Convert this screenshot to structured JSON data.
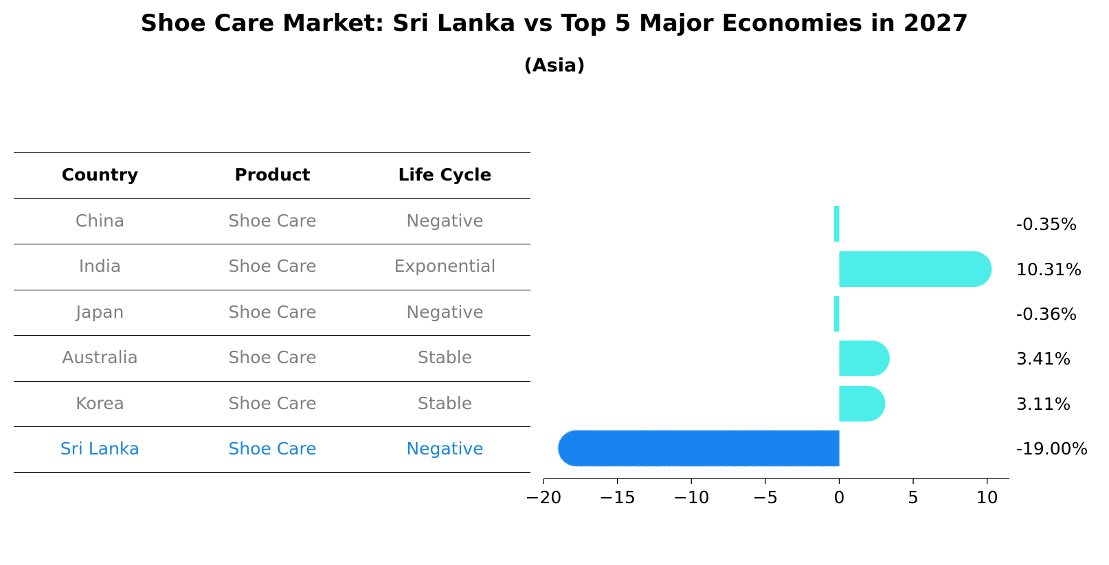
{
  "title": "Shoe Care Market: Sri Lanka vs Top 5 Major Economies in 2027",
  "subtitle": "(Asia)",
  "colors": {
    "bar": "#4deeea",
    "highlight_bar": "#1884f0",
    "muted_text": "#808080",
    "highlight_text": "#1a86e0"
  },
  "table": {
    "headers": [
      "Country",
      "Product",
      "Life Cycle"
    ],
    "rows": [
      {
        "country": "China",
        "product": "Shoe Care",
        "life_cycle": "Negative",
        "highlight": false
      },
      {
        "country": "India",
        "product": "Shoe Care",
        "life_cycle": "Exponential",
        "highlight": false
      },
      {
        "country": "Japan",
        "product": "Shoe Care",
        "life_cycle": "Negative",
        "highlight": false
      },
      {
        "country": "Australia",
        "product": "Shoe Care",
        "life_cycle": "Stable",
        "highlight": false
      },
      {
        "country": "Korea",
        "product": "Shoe Care",
        "life_cycle": "Stable",
        "highlight": false
      },
      {
        "country": "Sri Lanka",
        "product": "Shoe Care",
        "life_cycle": "Negative",
        "highlight": true
      }
    ]
  },
  "chart_data": {
    "type": "bar",
    "orientation": "horizontal",
    "categories": [
      "China",
      "India",
      "Japan",
      "Australia",
      "Korea",
      "Sri Lanka"
    ],
    "values": [
      -0.35,
      10.31,
      -0.36,
      3.41,
      3.11,
      -19.0
    ],
    "value_labels": [
      "-0.35%",
      "10.31%",
      "-0.36%",
      "3.41%",
      "3.11%",
      "-19.00%"
    ],
    "highlight_category": "Sri Lanka",
    "xlim": [
      -19.95,
      11.5
    ],
    "xticks": [
      -20,
      -15,
      -10,
      -5,
      0,
      5,
      10
    ],
    "xtick_labels": [
      "−20",
      "−15",
      "−10",
      "−5",
      "0",
      "5",
      "10"
    ],
    "xlabel": "",
    "ylabel": "",
    "grid": false
  }
}
